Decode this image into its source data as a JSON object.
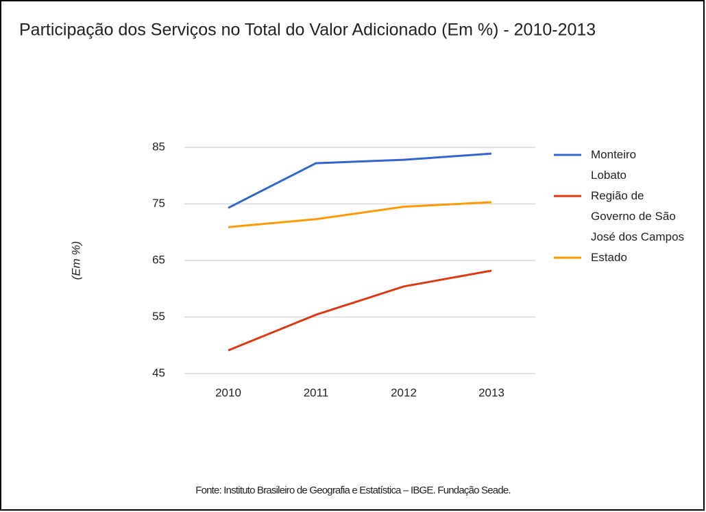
{
  "chart_data": {
    "type": "line",
    "title": "Participação dos Serviços no Total do Valor Adicionado (Em %) - 2010-2013",
    "y_label": "(Em %)",
    "source": "Fonte: Instituto Brasileiro de Geografia e Estatística – IBGE. Fundação Seade.",
    "categories": [
      "2010",
      "2011",
      "2012",
      "2013"
    ],
    "series": [
      {
        "name": "Monteiro Lobato",
        "color": "#3366cc",
        "values": [
          74.3,
          82.2,
          82.8,
          83.9
        ]
      },
      {
        "name": "Região de Governo de São José dos Campos",
        "color": "#dc3912",
        "values": [
          49.1,
          55.4,
          60.4,
          63.2
        ]
      },
      {
        "name": "Estado",
        "color": "#ff9900",
        "values": [
          70.9,
          72.3,
          74.5,
          75.3
        ]
      }
    ],
    "ylim": [
      45,
      85
    ],
    "yticks": [
      45,
      55,
      65,
      75,
      85
    ],
    "grid": true,
    "legend": "right"
  }
}
